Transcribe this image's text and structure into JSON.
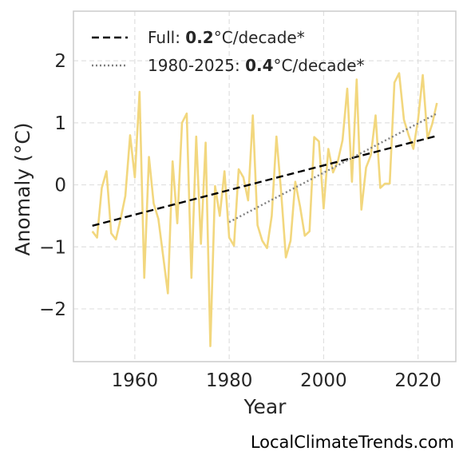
{
  "chart_data": {
    "type": "line",
    "xlabel": "Year",
    "ylabel": "Anomaly (°C)",
    "xlim": [
      1947,
      2028
    ],
    "ylim": [
      -2.85,
      2.8
    ],
    "x_ticks": [
      1960,
      1980,
      2000,
      2020
    ],
    "y_ticks": [
      2,
      1,
      0,
      -1,
      -2
    ],
    "y_tick_labels": [
      "2",
      "1",
      "0",
      "−1",
      "−2"
    ],
    "grid": true,
    "legend_position": "top-left",
    "series": [
      {
        "kind": "observed",
        "color": "#f2d77e",
        "x": [
          1951,
          1952,
          1953,
          1954,
          1955,
          1956,
          1957,
          1958,
          1959,
          1960,
          1961,
          1962,
          1963,
          1964,
          1965,
          1966,
          1967,
          1968,
          1969,
          1970,
          1971,
          1972,
          1973,
          1974,
          1975,
          1976,
          1977,
          1978,
          1979,
          1980,
          1981,
          1982,
          1983,
          1984,
          1985,
          1986,
          1987,
          1988,
          1989,
          1990,
          1991,
          1992,
          1993,
          1994,
          1995,
          1996,
          1997,
          1998,
          1999,
          2000,
          2001,
          2002,
          2003,
          2004,
          2005,
          2006,
          2007,
          2008,
          2009,
          2010,
          2011,
          2012,
          2013,
          2014,
          2015,
          2016,
          2017,
          2018,
          2019,
          2020,
          2021,
          2022,
          2023,
          2024
        ],
        "values": [
          -0.75,
          -0.85,
          -0.05,
          0.22,
          -0.78,
          -0.88,
          -0.55,
          -0.18,
          0.8,
          0.12,
          1.5,
          -1.5,
          0.45,
          -0.3,
          -0.55,
          -1.15,
          -1.75,
          0.38,
          -0.62,
          1.0,
          1.15,
          -1.5,
          0.78,
          -0.95,
          0.68,
          -2.6,
          -0.02,
          -0.5,
          0.22,
          -0.85,
          -0.98,
          0.25,
          0.12,
          -0.25,
          1.12,
          -0.65,
          -0.9,
          -1.02,
          -0.5,
          0.78,
          -0.12,
          -1.17,
          -0.9,
          0.05,
          -0.35,
          -0.82,
          -0.75,
          0.77,
          0.7,
          -0.38,
          0.58,
          0.2,
          0.38,
          0.72,
          1.55,
          0.05,
          1.7,
          -0.4,
          0.28,
          0.48,
          1.12,
          -0.05,
          0.02,
          0.02,
          1.65,
          1.8,
          1.05,
          0.8,
          0.58,
          1.05,
          1.77,
          0.75,
          0.98,
          1.32
        ]
      },
      {
        "kind": "trend-full",
        "color": "#000000",
        "x": [
          1951,
          2024
        ],
        "values": [
          -0.66,
          0.79
        ]
      },
      {
        "kind": "trend-recent",
        "color": "#808080",
        "x": [
          1980,
          2024
        ],
        "values": [
          -0.6,
          1.15
        ]
      }
    ],
    "legend": [
      {
        "prefix": "Full: ",
        "value": "0.2",
        "suffix": "°C/decade*"
      },
      {
        "prefix": "1980-2025: ",
        "value": "0.4",
        "suffix": "°C/decade*"
      }
    ]
  },
  "credit": "LocalClimateTrends.com"
}
